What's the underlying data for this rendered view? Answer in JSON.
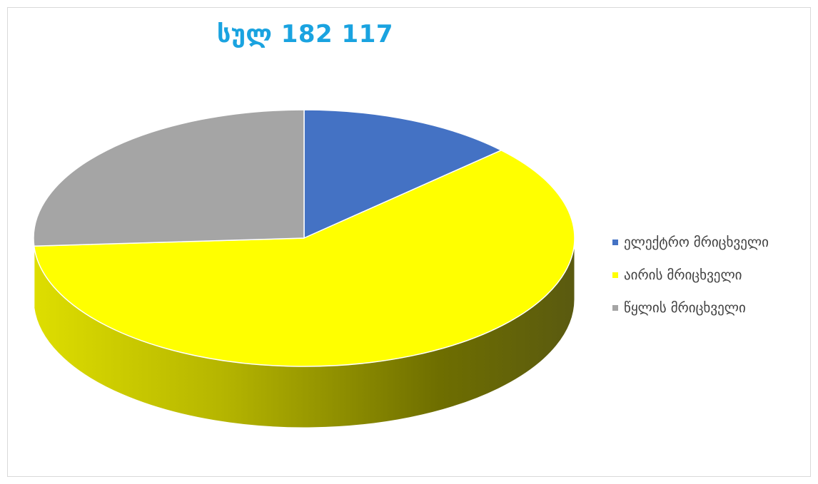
{
  "colors": {
    "title": "#1aa3e0",
    "frame_border": "#d9d9d9"
  },
  "chart_data": {
    "type": "pie",
    "style": "3d",
    "title": "სულ 182 117",
    "legend_position": "right",
    "categories": [
      "ელექტრო მრიცხველი",
      "აირის მრიცხველი",
      "წყლის მრიცხველი"
    ],
    "values": [
      13,
      61,
      26
    ],
    "colors": [
      "#4472c4",
      "#ffff00",
      "#a5a5a5"
    ],
    "start_angle_deg": 0,
    "direction": "clockwise"
  }
}
